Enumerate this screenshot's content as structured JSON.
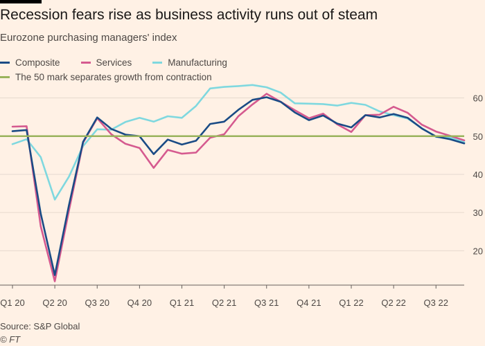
{
  "title": "Recession fears rise as business activity runs out of steam",
  "subtitle": "Eurozone purchasing managers' index",
  "source": "Source: S&P Global",
  "credit": "© FT",
  "chart_data": {
    "type": "line",
    "title": "Recession fears rise as business activity runs out of steam",
    "subtitle": "Eurozone purchasing managers' index",
    "x_ticks": [
      "Q1 20",
      "Q2 20",
      "Q3 20",
      "Q4 20",
      "Q1 21",
      "Q2 21",
      "Q3 21",
      "Q4 21",
      "Q1 22",
      "Q2 22",
      "Q3 22"
    ],
    "y_ticks": [
      20,
      30,
      40,
      50,
      60
    ],
    "ylim": [
      11,
      63
    ],
    "grid": true,
    "y_axis_side": "right",
    "legend_placement": "top-left",
    "reference_line": {
      "value": 50,
      "label": "The 50 mark separates growth from contraction",
      "color": "#99b35c"
    },
    "series": [
      {
        "name": "Manufacturing",
        "color": "#7fd8df",
        "values": [
          47.9,
          49.2,
          44.5,
          33.4,
          39.4,
          47.4,
          51.8,
          51.7,
          53.7,
          54.8,
          53.8,
          55.2,
          54.8,
          57.9,
          62.5,
          62.9,
          63.1,
          63.4,
          62.8,
          61.4,
          58.6,
          58.5,
          58.4,
          58.0,
          58.7,
          58.2,
          56.5,
          55.5,
          54.6,
          52.1,
          49.8,
          49.6,
          48.4
        ]
      },
      {
        "name": "Services",
        "color": "#d55a8f",
        "values": [
          52.5,
          52.6,
          26.4,
          12.0,
          30.5,
          48.3,
          54.7,
          50.5,
          48.0,
          46.9,
          41.7,
          46.4,
          45.4,
          45.7,
          49.6,
          50.5,
          55.2,
          58.3,
          61.1,
          59.0,
          56.8,
          54.7,
          55.9,
          53.1,
          51.1,
          55.5,
          55.6,
          57.7,
          56.1,
          53.0,
          51.2,
          50.1,
          48.9
        ]
      },
      {
        "name": "Composite",
        "color": "#1a4b85",
        "values": [
          51.3,
          51.6,
          29.7,
          13.6,
          31.9,
          48.5,
          54.9,
          51.9,
          50.4,
          50.0,
          45.3,
          49.1,
          47.8,
          48.8,
          53.2,
          53.8,
          56.9,
          59.5,
          60.2,
          59.0,
          56.2,
          54.2,
          55.4,
          53.3,
          52.3,
          55.5,
          54.9,
          55.8,
          54.8,
          52.0,
          49.9,
          49.2,
          48.1
        ]
      }
    ],
    "legend": [
      {
        "name": "Composite",
        "color": "#1a4b85"
      },
      {
        "name": "Services",
        "color": "#d55a8f"
      },
      {
        "name": "Manufacturing",
        "color": "#7fd8df"
      }
    ]
  }
}
